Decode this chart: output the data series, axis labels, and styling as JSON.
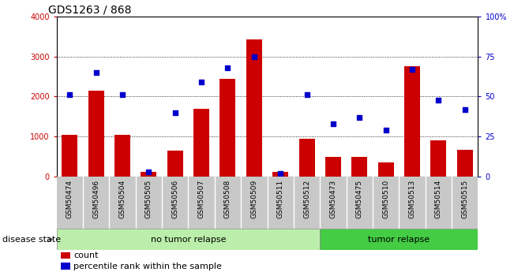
{
  "title": "GDS1263 / 868",
  "samples": [
    "GSM50474",
    "GSM50496",
    "GSM50504",
    "GSM50505",
    "GSM50506",
    "GSM50507",
    "GSM50508",
    "GSM50509",
    "GSM50511",
    "GSM50512",
    "GSM50473",
    "GSM50475",
    "GSM50510",
    "GSM50513",
    "GSM50514",
    "GSM50515"
  ],
  "counts": [
    1050,
    2150,
    1050,
    130,
    650,
    1700,
    2450,
    3420,
    120,
    950,
    500,
    500,
    350,
    2750,
    900,
    680
  ],
  "percentiles": [
    51,
    65,
    51,
    3,
    40,
    59,
    68,
    75,
    2,
    51,
    33,
    37,
    29,
    67,
    48,
    42
  ],
  "no_tumor_count": 10,
  "tumor_count": 6,
  "bar_color": "#cc0000",
  "scatter_color": "#0000cc",
  "no_tumor_color": "#bbeeaa",
  "tumor_color": "#44cc44",
  "label_bg_color": "#c8c8c8",
  "ylim_left": [
    0,
    4000
  ],
  "ylim_right": [
    0,
    100
  ],
  "yticks_left": [
    0,
    1000,
    2000,
    3000,
    4000
  ],
  "yticks_right": [
    0,
    25,
    50,
    75,
    100
  ],
  "left_axis_color": "#cc0000",
  "right_axis_color": "#0000cc",
  "title_fontsize": 10,
  "tick_fontsize": 7,
  "label_fontsize": 6.5,
  "legend_fontsize": 8,
  "disease_fontsize": 8,
  "disease_state_fontsize": 8
}
